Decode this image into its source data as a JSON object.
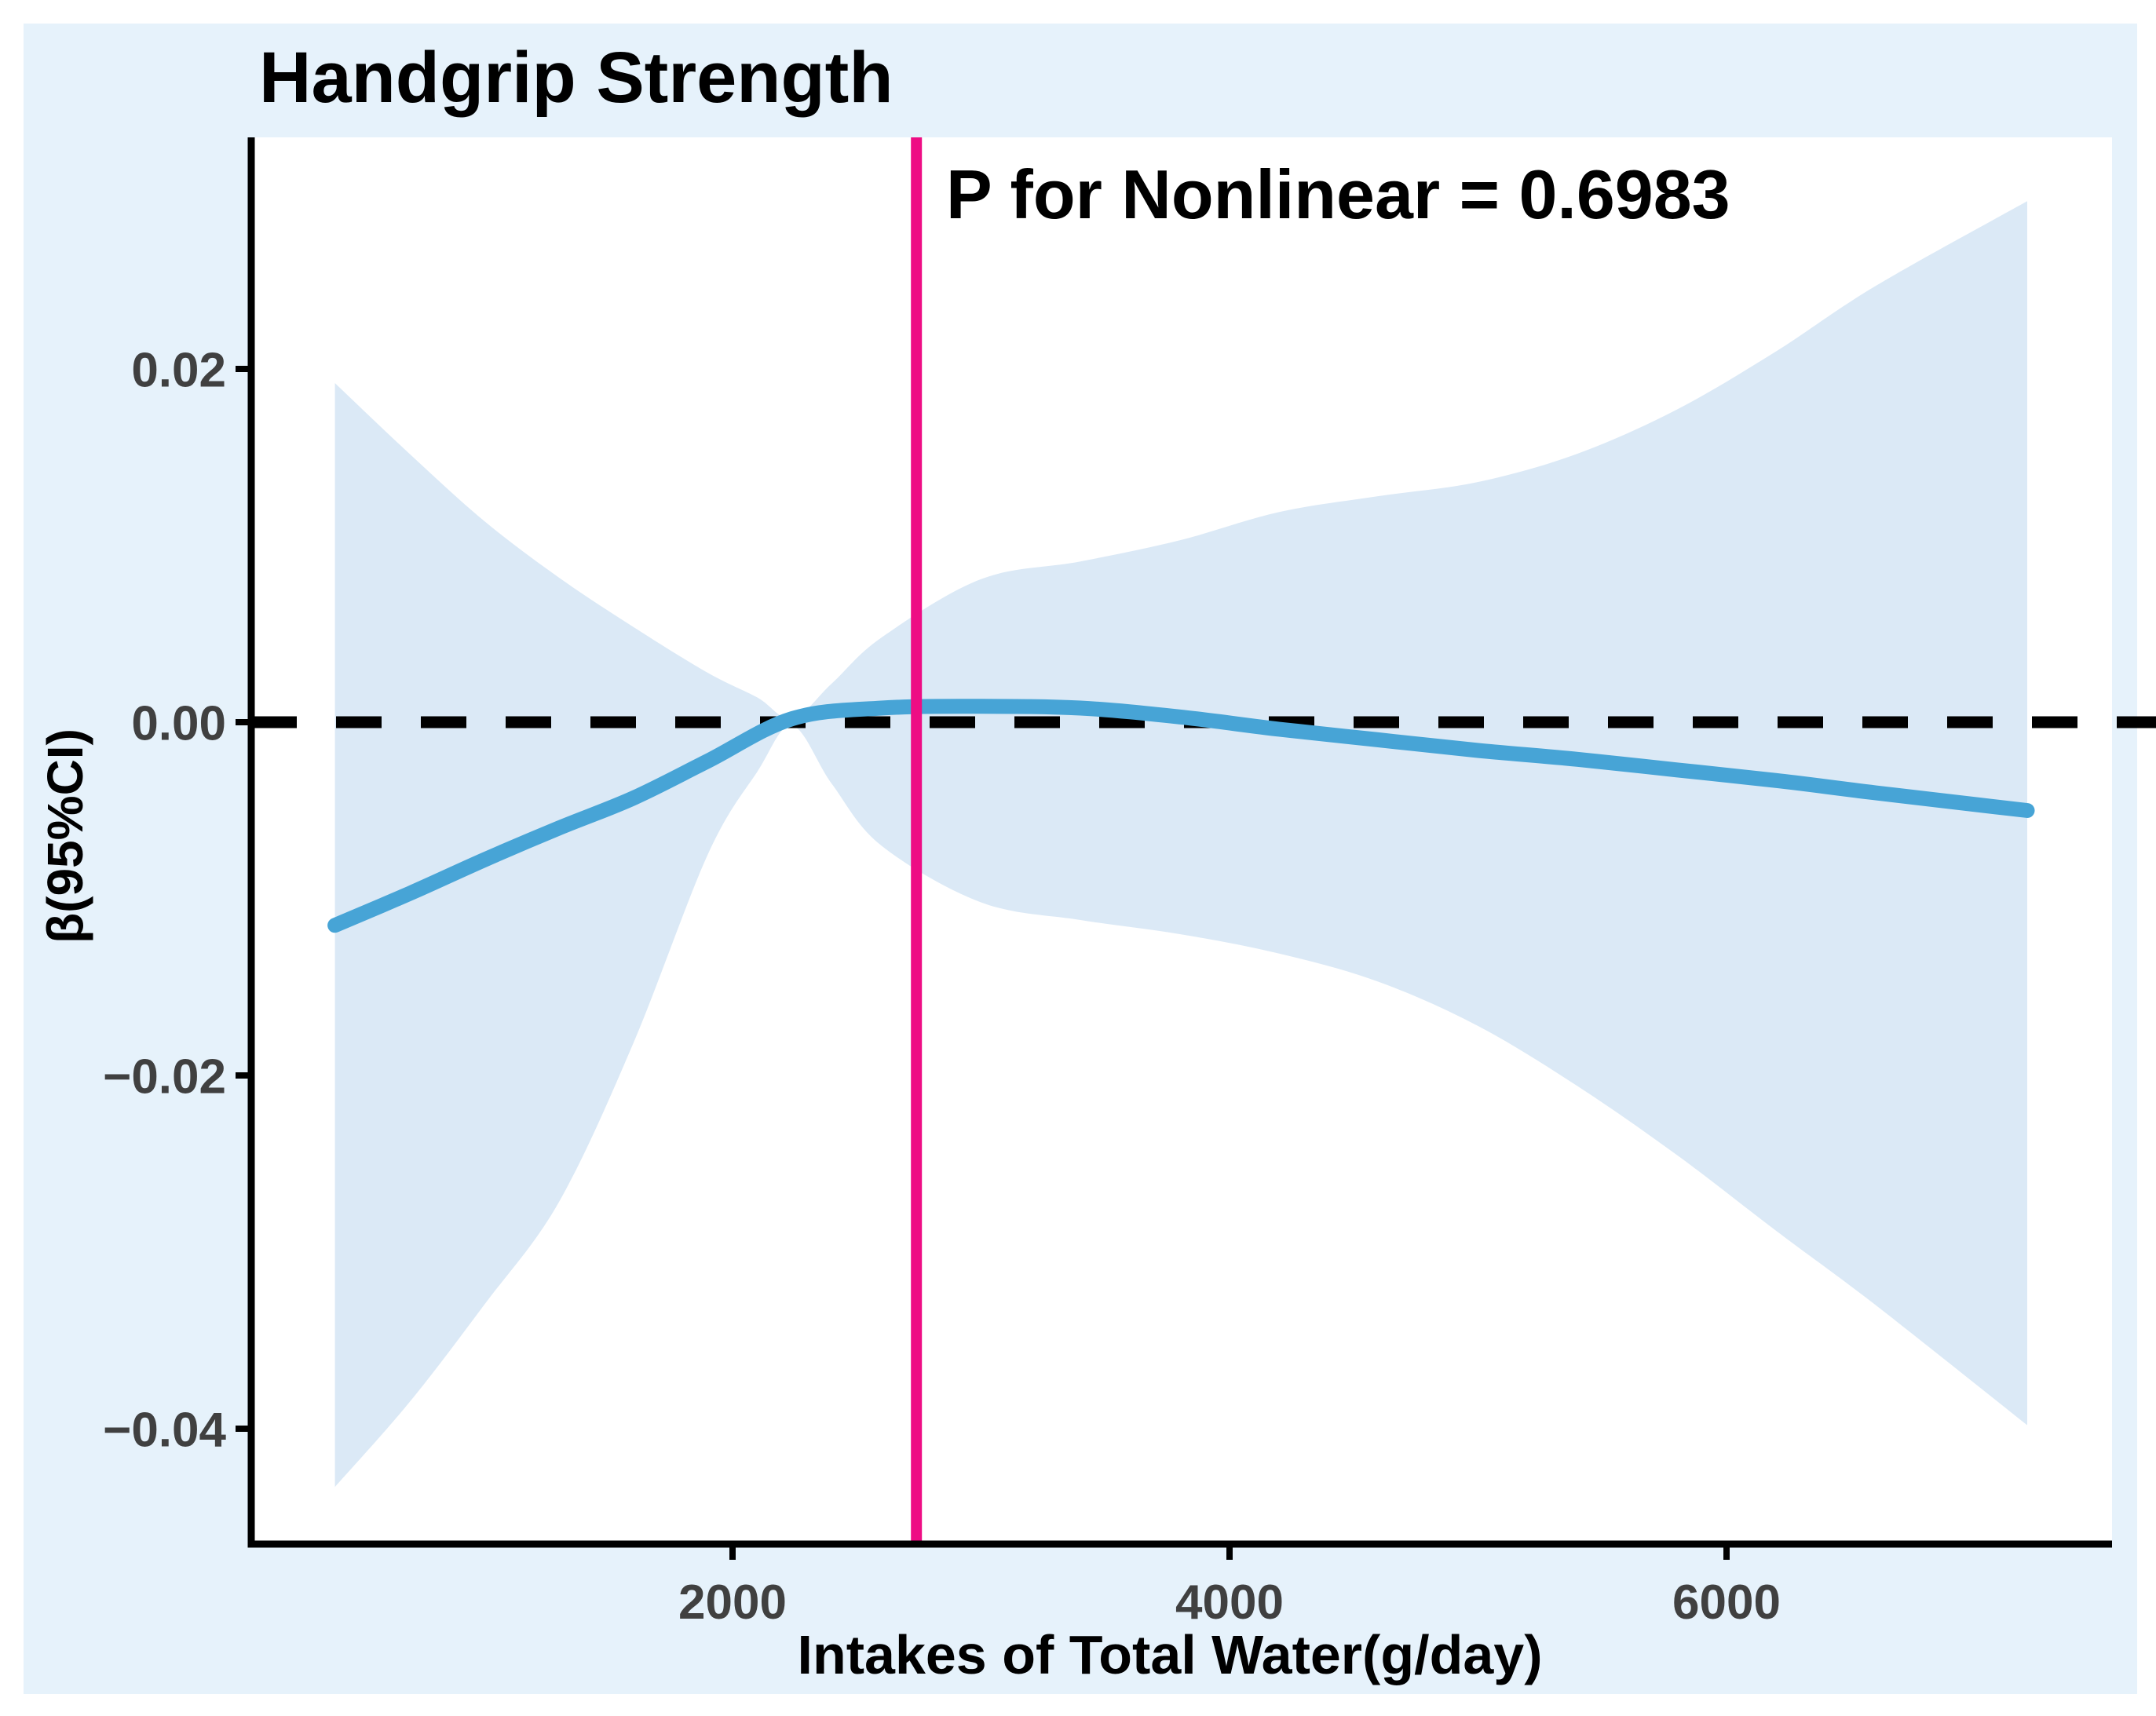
{
  "chart_data": {
    "type": "line",
    "title": "Handgrip Strength",
    "annotation": "P for Nonlinear = 0.6983",
    "xlabel": "Intakes of Total Water(g/day)",
    "ylabel": "β(95%CI)",
    "x_ticks": {
      "values": [
        2000,
        4000,
        6000
      ],
      "labels": [
        "2000",
        "4000",
        "6000"
      ]
    },
    "y_ticks": {
      "values": [
        0.02,
        0,
        -0.02,
        -0.04
      ],
      "labels": [
        "0.02",
        "0.00",
        "−0.02",
        "−0.04"
      ]
    },
    "xlim": [
      63,
      7551
    ],
    "ylim": [
      -0.0465,
      0.0331
    ],
    "grid": false,
    "legend_position": "none",
    "zero_dashed_line_y": 0,
    "reference_line_x": 2740,
    "series": [
      {
        "name": "fitted-beta",
        "style": "solid-curve",
        "x": [
          400,
          700,
          1000,
          1300,
          1600,
          1900,
          2240,
          2600,
          3000,
          3400,
          3800,
          4200,
          4600,
          5000,
          5400,
          5800,
          6200,
          6600,
          7210
        ],
        "y": [
          -0.0115,
          -0.0097,
          -0.0078,
          -0.006,
          -0.0043,
          -0.0022,
          0.0002,
          0.0008,
          0.0009,
          0.0008,
          0.0003,
          -0.0004,
          -0.001,
          -0.0016,
          -0.0021,
          -0.0027,
          -0.0033,
          -0.004,
          -0.005
        ]
      },
      {
        "name": "ci-upper",
        "style": "band-edge",
        "x": [
          400,
          700,
          1000,
          1300,
          1600,
          1900,
          2100,
          2240,
          2400,
          2600,
          3000,
          3400,
          3800,
          4200,
          4600,
          5000,
          5400,
          5800,
          6200,
          6600,
          7210
        ],
        "y": [
          0.0192,
          0.0152,
          0.0114,
          0.0082,
          0.0054,
          0.0028,
          0.0014,
          0.0002,
          0.0022,
          0.0048,
          0.0081,
          0.0091,
          0.0103,
          0.0119,
          0.0128,
          0.0136,
          0.0152,
          0.0177,
          0.021,
          0.0247,
          0.0295
        ]
      },
      {
        "name": "ci-lower",
        "style": "band-edge",
        "x": [
          400,
          700,
          1000,
          1300,
          1600,
          1900,
          2100,
          2240,
          2400,
          2600,
          3000,
          3400,
          3800,
          4200,
          4600,
          5000,
          5400,
          5800,
          6200,
          6600,
          7210
        ],
        "y": [
          -0.0433,
          -0.0385,
          -0.033,
          -0.0272,
          -0.0182,
          -0.0075,
          -0.0028,
          -0.0002,
          -0.0035,
          -0.007,
          -0.0102,
          -0.0112,
          -0.012,
          -0.0131,
          -0.0147,
          -0.0172,
          -0.0206,
          -0.0245,
          -0.0288,
          -0.033,
          -0.0398
        ]
      }
    ],
    "colors": {
      "page_background": "#ffffff",
      "figure_background": "#e6f2fb",
      "panel_background": "#ffffff",
      "band": "#dbe9f6",
      "curve": "#47a4d6",
      "reference_line": "#ee0d84",
      "dashed_line": "#000000",
      "axis": "#000000",
      "tick_label": "#404040",
      "text": "#000000"
    }
  }
}
